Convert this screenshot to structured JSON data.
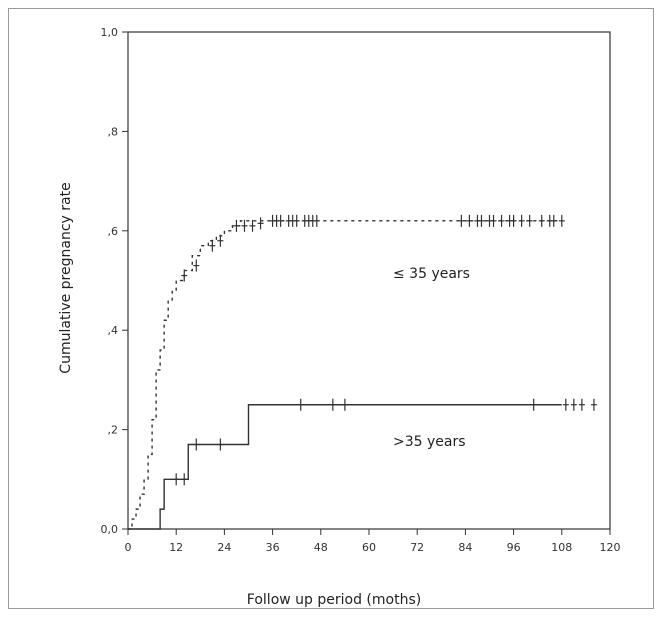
{
  "chart_data": {
    "type": "line",
    "xlabel": "Follow up period (moths)",
    "ylabel": "Cumulative pregnancy rate",
    "xlim": [
      0,
      120
    ],
    "ylim": [
      0,
      1
    ],
    "x_ticks": [
      0,
      12,
      24,
      36,
      48,
      60,
      72,
      84,
      96,
      108,
      120
    ],
    "x_tick_labels": [
      "0",
      "12",
      "24",
      "36",
      "48",
      "60",
      "72",
      "84",
      "96",
      "108",
      "120"
    ],
    "y_ticks": [
      0,
      0.2,
      0.4,
      0.6,
      0.8,
      1.0
    ],
    "y_tick_labels": [
      "0,0",
      ",2",
      ",4",
      ",6",
      ",8",
      "1,0"
    ],
    "grid": false,
    "annotations": [
      {
        "text": "≤ 35 years",
        "x": 73,
        "y": 0.5
      },
      {
        "text": ">35 years",
        "x": 73,
        "y": 0.175
      }
    ],
    "series": [
      {
        "style": "dotted",
        "color": "#333333",
        "steps": [
          [
            0,
            0
          ],
          [
            1,
            0.02
          ],
          [
            2,
            0.04
          ],
          [
            3,
            0.07
          ],
          [
            4,
            0.1
          ],
          [
            5,
            0.15
          ],
          [
            6,
            0.22
          ],
          [
            7,
            0.32
          ],
          [
            8,
            0.36
          ],
          [
            9,
            0.42
          ],
          [
            10,
            0.46
          ],
          [
            11,
            0.48
          ],
          [
            12,
            0.5
          ],
          [
            14,
            0.52
          ],
          [
            16,
            0.55
          ],
          [
            18,
            0.57
          ],
          [
            20,
            0.58
          ],
          [
            22,
            0.59
          ],
          [
            24,
            0.6
          ],
          [
            26,
            0.61
          ],
          [
            28,
            0.62
          ]
        ],
        "x_end": 108,
        "censored": [
          [
            14,
            0.51
          ],
          [
            17,
            0.53
          ],
          [
            21,
            0.57
          ],
          [
            23,
            0.58
          ],
          [
            27,
            0.61
          ],
          [
            29,
            0.61
          ],
          [
            31,
            0.61
          ],
          [
            33,
            0.615
          ],
          [
            36,
            0.62
          ],
          [
            37,
            0.62
          ],
          [
            38,
            0.62
          ],
          [
            40,
            0.62
          ],
          [
            41,
            0.62
          ],
          [
            42,
            0.62
          ],
          [
            44,
            0.62
          ],
          [
            45,
            0.62
          ],
          [
            46,
            0.62
          ],
          [
            47,
            0.62
          ],
          [
            83,
            0.62
          ],
          [
            85,
            0.62
          ],
          [
            87,
            0.62
          ],
          [
            88,
            0.62
          ],
          [
            90,
            0.62
          ],
          [
            91,
            0.62
          ],
          [
            93,
            0.62
          ],
          [
            95,
            0.62
          ],
          [
            96,
            0.62
          ],
          [
            98,
            0.62
          ],
          [
            100,
            0.62
          ],
          [
            103,
            0.62
          ],
          [
            105,
            0.62
          ],
          [
            106,
            0.62
          ],
          [
            108,
            0.62
          ]
        ]
      },
      {
        "style": "solid",
        "color": "#333333",
        "steps": [
          [
            0,
            0
          ],
          [
            8,
            0.04
          ],
          [
            9,
            0.1
          ],
          [
            15,
            0.17
          ],
          [
            30,
            0.25
          ]
        ],
        "x_end": 108,
        "censored": [
          [
            12,
            0.1
          ],
          [
            14,
            0.1
          ],
          [
            17,
            0.17
          ],
          [
            23,
            0.17
          ],
          [
            43,
            0.25
          ],
          [
            51,
            0.25
          ],
          [
            54,
            0.25
          ],
          [
            101,
            0.25
          ],
          [
            109,
            0.25
          ],
          [
            111,
            0.25
          ],
          [
            113,
            0.25
          ],
          [
            116,
            0.25
          ]
        ]
      }
    ]
  }
}
